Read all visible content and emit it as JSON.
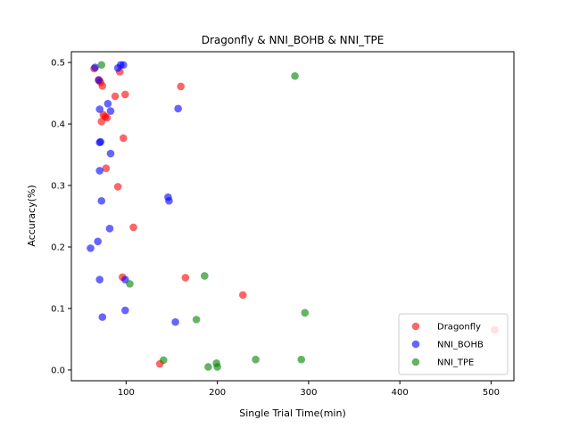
{
  "chart_data": {
    "type": "scatter",
    "title": "Dragonfly & NNI_BOHB & NNI_TPE",
    "xlabel": "Single Trial Time(min)",
    "ylabel": "Accuracy(%)",
    "xlim": [
      40,
      525
    ],
    "ylim": [
      -0.0175,
      0.5175
    ],
    "xticks": [
      100,
      200,
      300,
      400,
      500
    ],
    "yticks": [
      0.0,
      0.1,
      0.2,
      0.3,
      0.4,
      0.5
    ],
    "ytick_labels": [
      "0.0",
      "0.1",
      "0.2",
      "0.3",
      "0.4",
      "0.5"
    ],
    "legend_position": "lower-right",
    "grid": false,
    "series": [
      {
        "name": "Dragonfly",
        "color": "#ff0000",
        "x": [
          65,
          70,
          72,
          74,
          75,
          77,
          79,
          73,
          88,
          93,
          99,
          97,
          78,
          91,
          108,
          96,
          160,
          165,
          228,
          137,
          504
        ],
        "y": [
          0.49,
          0.472,
          0.468,
          0.462,
          0.415,
          0.412,
          0.41,
          0.404,
          0.445,
          0.485,
          0.448,
          0.377,
          0.328,
          0.298,
          0.232,
          0.151,
          0.461,
          0.15,
          0.122,
          0.01,
          0.065
        ]
      },
      {
        "name": "NNI_BOHB",
        "color": "#0000ff",
        "x": [
          66,
          70,
          91,
          94,
          97,
          71,
          80,
          83,
          71,
          72,
          83,
          71,
          73,
          157,
          146,
          147,
          82,
          69,
          61,
          71,
          99,
          99,
          74,
          154
        ],
        "y": [
          0.492,
          0.471,
          0.491,
          0.496,
          0.496,
          0.424,
          0.433,
          0.421,
          0.37,
          0.371,
          0.352,
          0.324,
          0.275,
          0.425,
          0.281,
          0.275,
          0.23,
          0.209,
          0.198,
          0.147,
          0.147,
          0.097,
          0.086,
          0.078
        ]
      },
      {
        "name": "NNI_TPE",
        "color": "#008000",
        "x": [
          73,
          285,
          104,
          186,
          177,
          296,
          141,
          190,
          199,
          200,
          242,
          292
        ],
        "y": [
          0.496,
          0.478,
          0.14,
          0.153,
          0.082,
          0.093,
          0.016,
          0.005,
          0.011,
          0.005,
          0.017,
          0.017
        ]
      }
    ]
  }
}
